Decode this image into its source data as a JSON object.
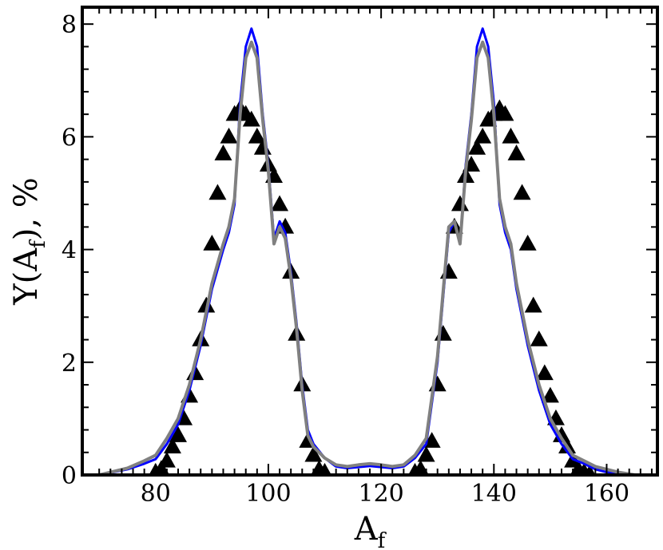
{
  "chart_data": {
    "type": "line",
    "title": "",
    "xlabel": "A",
    "xlabel_subscript": "f",
    "ylabel_prefix": "Y(A",
    "ylabel_subscript": "f",
    "ylabel_suffix": "),  %",
    "xlim": [
      67,
      169
    ],
    "ylim": [
      0,
      8.3
    ],
    "xticks": [
      80,
      100,
      120,
      140,
      160
    ],
    "yticks": [
      0,
      2,
      4,
      6,
      8
    ],
    "grid": false,
    "legend": "none",
    "series": [
      {
        "style": "line",
        "color": "#0000ff",
        "x": [
          70,
          75,
          78,
          80,
          82,
          84,
          86,
          88,
          90,
          92,
          93,
          94,
          95,
          96,
          97,
          98,
          99,
          100,
          101,
          102,
          103,
          104,
          105,
          106,
          107,
          108,
          110,
          112,
          114,
          116,
          118,
          120,
          122,
          124,
          126,
          128,
          130,
          132,
          133,
          134,
          135,
          136,
          137,
          138,
          139,
          140,
          141,
          142,
          143,
          144,
          146,
          148,
          150,
          152,
          154,
          156,
          158,
          160,
          162,
          165,
          169
        ],
        "y": [
          0.0,
          0.1,
          0.2,
          0.28,
          0.55,
          0.9,
          1.5,
          2.3,
          3.3,
          4.0,
          4.3,
          4.8,
          6.6,
          7.6,
          7.92,
          7.6,
          6.4,
          5.5,
          4.2,
          4.5,
          4.3,
          3.6,
          2.7,
          1.6,
          0.8,
          0.55,
          0.3,
          0.15,
          0.12,
          0.14,
          0.16,
          0.14,
          0.12,
          0.15,
          0.3,
          0.55,
          2.0,
          4.3,
          4.5,
          4.1,
          5.5,
          6.4,
          7.6,
          7.92,
          7.6,
          6.6,
          4.8,
          4.3,
          4.0,
          3.3,
          2.3,
          1.5,
          0.9,
          0.55,
          0.28,
          0.2,
          0.1,
          0.05,
          0.02,
          0.0,
          0.0
        ]
      },
      {
        "style": "line",
        "color": "#808080",
        "x": [
          70,
          75,
          78,
          80,
          82,
          84,
          86,
          88,
          90,
          92,
          93,
          94,
          95,
          96,
          97,
          98,
          99,
          100,
          101,
          102,
          103,
          104,
          105,
          106,
          107,
          108,
          110,
          112,
          114,
          116,
          118,
          120,
          122,
          124,
          126,
          128,
          130,
          132,
          133,
          134,
          135,
          136,
          137,
          138,
          139,
          140,
          141,
          142,
          143,
          144,
          146,
          148,
          150,
          152,
          154,
          156,
          158,
          160,
          162,
          165,
          169
        ],
        "y": [
          0.0,
          0.12,
          0.25,
          0.35,
          0.65,
          1.0,
          1.6,
          2.4,
          3.4,
          4.1,
          4.4,
          4.9,
          6.4,
          7.4,
          7.68,
          7.4,
          6.3,
          5.4,
          4.1,
          4.4,
          4.2,
          3.5,
          2.6,
          1.5,
          0.7,
          0.5,
          0.3,
          0.18,
          0.15,
          0.18,
          0.2,
          0.18,
          0.15,
          0.18,
          0.35,
          0.65,
          2.1,
          4.4,
          4.5,
          4.1,
          5.4,
          6.3,
          7.4,
          7.68,
          7.4,
          6.4,
          4.9,
          4.4,
          4.1,
          3.4,
          2.4,
          1.6,
          1.0,
          0.65,
          0.35,
          0.25,
          0.15,
          0.1,
          0.05,
          0.0,
          0.0
        ]
      },
      {
        "style": "scatter",
        "marker": "triangle",
        "color": "#000000",
        "x": [
          80,
          81,
          82,
          83,
          84,
          85,
          86,
          87,
          88,
          89,
          90,
          91,
          92,
          93,
          94,
          95,
          96,
          97,
          98,
          99,
          100,
          101,
          102,
          103,
          104,
          105,
          106,
          107,
          108,
          109,
          110,
          126,
          127,
          128,
          129,
          130,
          131,
          132,
          133,
          134,
          135,
          136,
          137,
          138,
          139,
          140,
          141,
          142,
          143,
          144,
          145,
          146,
          147,
          148,
          149,
          150,
          151,
          152,
          153,
          154,
          155,
          156,
          157
        ],
        "y": [
          0.05,
          0.1,
          0.25,
          0.5,
          0.7,
          1.0,
          1.4,
          1.8,
          2.4,
          3.0,
          4.1,
          5.0,
          5.7,
          6.0,
          6.4,
          6.5,
          6.4,
          6.3,
          6.0,
          5.8,
          5.5,
          5.3,
          4.8,
          4.4,
          3.6,
          2.5,
          1.6,
          0.6,
          0.35,
          0.1,
          0.05,
          0.05,
          0.1,
          0.35,
          0.6,
          1.6,
          2.5,
          3.6,
          4.4,
          4.8,
          5.3,
          5.5,
          5.8,
          6.0,
          6.3,
          6.4,
          6.5,
          6.4,
          6.0,
          5.7,
          5.0,
          4.1,
          3.0,
          2.4,
          1.8,
          1.4,
          1.0,
          0.7,
          0.5,
          0.25,
          0.1,
          0.05,
          0.02
        ]
      }
    ]
  }
}
